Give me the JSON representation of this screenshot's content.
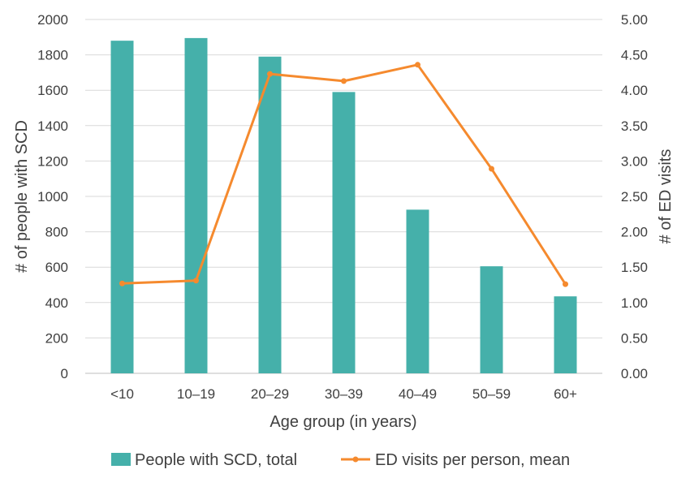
{
  "chart_data": {
    "type": "bar+line",
    "categories": [
      "<10",
      "10–19",
      "20–29",
      "30–39",
      "40–49",
      "50–59",
      "60+"
    ],
    "series": [
      {
        "name": "People with SCD, total",
        "type": "bar",
        "axis": "left",
        "color": "#45B0AA",
        "values": [
          1880,
          1895,
          1790,
          1590,
          925,
          605,
          435
        ]
      },
      {
        "name": "ED visits per person, mean",
        "type": "line",
        "axis": "right",
        "color": "#F58A2E",
        "values": [
          1.27,
          1.31,
          4.23,
          4.13,
          4.36,
          2.89,
          1.26
        ]
      }
    ],
    "xlabel": "Age group (in years)",
    "ylabel": "# of people with SCD",
    "y2label": "# of ED visits",
    "ylim": [
      0,
      2000
    ],
    "y2lim": [
      0,
      5
    ],
    "yticks": [
      "0",
      "200",
      "400",
      "600",
      "800",
      "1000",
      "1200",
      "1400",
      "1600",
      "1800",
      "2000"
    ],
    "y2ticks": [
      "0.00",
      "0.50",
      "1.00",
      "1.50",
      "2.00",
      "2.50",
      "3.00",
      "3.50",
      "4.00",
      "4.50",
      "5.00"
    ],
    "grid": true,
    "legend": "bottom"
  }
}
